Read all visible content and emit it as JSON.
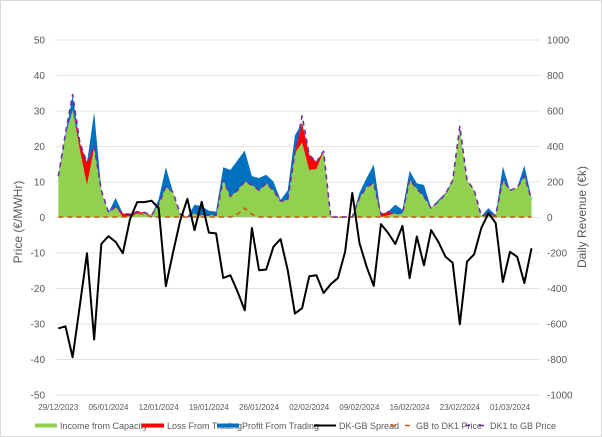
{
  "chart_data": {
    "type": "area",
    "title": "",
    "ylabel_left": "Price (€/MWHr)",
    "ylabel_right": "Daily Revenue (€k)",
    "ylim_left": [
      -50,
      50
    ],
    "ylim_right": [
      -1000,
      1000
    ],
    "yticks_left": [
      "50",
      "40",
      "30",
      "20",
      "10",
      "0",
      "-10",
      "-20",
      "-30",
      "-40",
      "-50"
    ],
    "yticks_right": [
      "1000",
      "800",
      "600",
      "400",
      "200",
      "0",
      "-200",
      "-400",
      "-600",
      "-800",
      "-1000"
    ],
    "xticks": [
      "29/12/2023",
      "05/01/2024",
      "12/01/2024",
      "19/01/2024",
      "26/01/2024",
      "02/02/2024",
      "09/02/2024",
      "16/02/2024",
      "23/02/2024",
      "01/03/2024"
    ],
    "grid": true,
    "legend_placement": "bottom",
    "dates": [
      "29/12/2023",
      "30/12/2023",
      "31/12/2023",
      "01/01/2024",
      "02/01/2024",
      "03/01/2024",
      "04/01/2024",
      "05/01/2024",
      "06/01/2024",
      "07/01/2024",
      "08/01/2024",
      "09/01/2024",
      "10/01/2024",
      "11/01/2024",
      "12/01/2024",
      "13/01/2024",
      "14/01/2024",
      "15/01/2024",
      "16/01/2024",
      "17/01/2024",
      "18/01/2024",
      "19/01/2024",
      "20/01/2024",
      "21/01/2024",
      "22/01/2024",
      "23/01/2024",
      "24/01/2024",
      "25/01/2024",
      "26/01/2024",
      "27/01/2024",
      "28/01/2024",
      "29/01/2024",
      "30/01/2024",
      "31/01/2024",
      "01/02/2024",
      "02/02/2024",
      "03/02/2024",
      "04/02/2024",
      "05/02/2024",
      "06/02/2024",
      "07/02/2024",
      "08/02/2024",
      "09/02/2024",
      "10/02/2024",
      "11/02/2024",
      "12/02/2024",
      "13/02/2024",
      "14/02/2024",
      "15/02/2024",
      "16/02/2024",
      "17/02/2024",
      "18/02/2024",
      "19/02/2024",
      "20/02/2024",
      "21/02/2024",
      "22/02/2024",
      "23/02/2024",
      "24/02/2024",
      "25/02/2024",
      "26/02/2024",
      "27/02/2024",
      "28/02/2024",
      "29/02/2024",
      "01/03/2024",
      "02/03/2024",
      "03/03/2024",
      "04/03/2024"
    ],
    "series": [
      {
        "name": "Income from Capacity",
        "axis": "right",
        "kind": "stacked-area",
        "color": "#92d050",
        "values": [
          220,
          460,
          600,
          380,
          180,
          390,
          150,
          25,
          57,
          0,
          5,
          20,
          20,
          10,
          70,
          170,
          140,
          15,
          0,
          20,
          10,
          10,
          10,
          210,
          115,
          150,
          200,
          180,
          150,
          190,
          150,
          90,
          96,
          360,
          420,
          265,
          270,
          370,
          0,
          0,
          0,
          0,
          107,
          170,
          190,
          0,
          10,
          20,
          20,
          210,
          160,
          115,
          50,
          85,
          130,
          205,
          500,
          210,
          150,
          5,
          20,
          10,
          210,
          150,
          165,
          230,
          100
        ]
      },
      {
        "name": "Loss From Trading",
        "axis": "right",
        "kind": "stacked-area",
        "color": "#ff0000",
        "values": [
          0,
          0,
          0,
          40,
          125,
          0,
          0,
          0,
          0,
          20,
          10,
          10,
          5,
          0,
          0,
          0,
          0,
          0,
          0,
          0,
          0,
          0,
          0,
          0,
          0,
          0,
          0,
          0,
          0,
          0,
          0,
          0,
          0,
          0,
          110,
          85,
          40,
          0,
          0,
          0,
          0,
          0,
          0,
          0,
          0,
          15,
          20,
          0,
          0,
          0,
          0,
          0,
          0,
          0,
          0,
          0,
          0,
          0,
          0,
          0,
          0,
          0,
          0,
          0,
          0,
          0,
          0
        ]
      },
      {
        "name": "Profit From Trading",
        "axis": "right",
        "kind": "stacked-area",
        "color": "#0070c0",
        "values": [
          10,
          10,
          80,
          0,
          0,
          200,
          0,
          0,
          50,
          0,
          0,
          0,
          0,
          0,
          30,
          110,
          0,
          0,
          0,
          50,
          50,
          25,
          20,
          70,
          150,
          170,
          175,
          50,
          70,
          48,
          50,
          6,
          54,
          100,
          0,
          0,
          0,
          5,
          0,
          0,
          0,
          0,
          28,
          50,
          105,
          0,
          0,
          50,
          20,
          50,
          30,
          65,
          0,
          11,
          5,
          5,
          0,
          0,
          0,
          0,
          30,
          0,
          75,
          0,
          0,
          60,
          7
        ]
      },
      {
        "name": "DK-GB Spread",
        "axis": "left",
        "kind": "line",
        "color": "#000000",
        "values": [
          -31.4,
          -30.8,
          -39.5,
          -25,
          -10.2,
          -34.5,
          -7.6,
          -5.4,
          -7,
          -10.2,
          -0.6,
          4.2,
          4.2,
          4.6,
          2.5,
          -19.5,
          -10,
          -1,
          5.1,
          -3.7,
          4.3,
          -4.4,
          -4.6,
          -17.2,
          -16.4,
          -21,
          -26.3,
          -3.1,
          -15,
          -14.8,
          -8.4,
          -6.2,
          -15,
          -27.2,
          -25.7,
          -16.7,
          -16.4,
          -21.4,
          -18.9,
          -17.2,
          -9.8,
          6.8,
          -7.3,
          -14,
          -19.4,
          -2,
          -4.5,
          -7.6,
          -2.5,
          -17.2,
          -5.5,
          -13.6,
          -3.7,
          -7,
          -11.2,
          -12.9,
          -30.2,
          -12.6,
          -10.5,
          -3.1,
          1.1,
          -1.7,
          -18.3,
          -9.8,
          -11.2,
          -18.6,
          -8.8
        ]
      },
      {
        "name": "GB to DK1 Price",
        "axis": "left",
        "kind": "dashed-line",
        "color": "#c55a11",
        "values": [
          0,
          0,
          0,
          0,
          0,
          0,
          0,
          0,
          0,
          0,
          0,
          1,
          0.8,
          0,
          0,
          0,
          0,
          0,
          0,
          0,
          0,
          0,
          0,
          0,
          0,
          0.8,
          2.5,
          0.8,
          0,
          0,
          0,
          0,
          0,
          0,
          0,
          0,
          0,
          0,
          0,
          0,
          0,
          0,
          0,
          0,
          0,
          0,
          0,
          0,
          0,
          0,
          0,
          0,
          0,
          0,
          0,
          0,
          0,
          0,
          0,
          0,
          0.5,
          0,
          0,
          0,
          0,
          0,
          0
        ]
      },
      {
        "name": "DK1 to GB Price",
        "axis": "left",
        "kind": "dashed-line",
        "color": "#7030a0",
        "values": [
          11.5,
          23.5,
          34.5,
          21,
          15.3,
          20,
          7.5,
          1.3,
          2.9,
          1,
          0.8,
          1.5,
          1.3,
          0.5,
          3.5,
          8.5,
          7,
          0.8,
          0,
          1,
          0.5,
          0.5,
          0.5,
          10.5,
          5.8,
          7.5,
          10,
          9,
          7.5,
          9.5,
          7.5,
          4.5,
          4.8,
          18,
          28.5,
          17.5,
          15.5,
          18.5,
          0,
          0,
          0,
          0,
          5.4,
          8.5,
          9.5,
          0.8,
          1.5,
          1,
          1,
          10.5,
          8,
          5.8,
          2.5,
          4.3,
          6.5,
          10.3,
          25.5,
          10.5,
          7.5,
          0.3,
          1,
          0.5,
          10.5,
          7.5,
          8.3,
          11.5,
          5
        ]
      }
    ]
  }
}
